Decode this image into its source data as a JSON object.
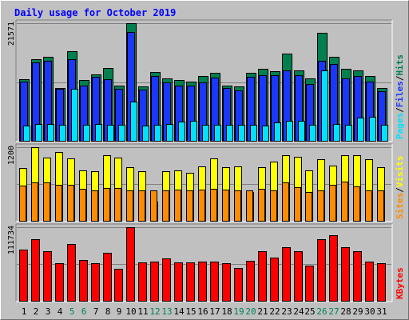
{
  "chart_data": {
    "type": "bar",
    "title": "Daily usage for October 2019",
    "categories": [
      "1",
      "2",
      "3",
      "4",
      "5",
      "6",
      "7",
      "8",
      "9",
      "10",
      "11",
      "12",
      "13",
      "14",
      "15",
      "16",
      "17",
      "18",
      "19",
      "20",
      "21",
      "22",
      "23",
      "24",
      "25",
      "26",
      "27",
      "28",
      "29",
      "30",
      "31"
    ],
    "weekend_days": [
      "5",
      "6",
      "12",
      "13",
      "19",
      "20",
      "26",
      "27"
    ],
    "panels": [
      {
        "id": "top",
        "max_label": "21571",
        "ymax": 21571,
        "legend": [
          "Pages",
          "/",
          "Files",
          "/",
          "Hits"
        ],
        "series": [
          {
            "name": "Hits",
            "color": "#007f4f",
            "values": [
              11357,
              15000,
              15370,
              9635,
              16389,
              11093,
              12241,
              13333,
              10093,
              21571,
              10019,
              12685,
              11463,
              11093,
              10926,
              11852,
              12407,
              10185,
              9926,
              12500,
              13241,
              12778,
              15926,
              12963,
              11481,
              19815,
              15463,
              13148,
              12870,
              11852,
              9722
            ]
          },
          {
            "name": "Files",
            "color": "#1a37ff",
            "values": [
              10926,
              14444,
              14630,
              9537,
              15000,
              10185,
              11667,
              11296,
              9537,
              20000,
              9352,
              11852,
              10741,
              10185,
              10185,
              10741,
              11574,
              9630,
              9259,
              11667,
              12037,
              12037,
              12963,
              12037,
              10370,
              14722,
              14074,
              11481,
              11852,
              10926,
              9167
            ]
          },
          {
            "name": "Pages",
            "color": "#00e1ff",
            "values": [
              2778,
              3056,
              3056,
              2963,
              9537,
              2963,
              3056,
              2870,
              2963,
              7222,
              2778,
              2963,
              3148,
              3519,
              3704,
              2870,
              2870,
              2870,
              2963,
              2870,
              2778,
              3333,
              3704,
              3704,
              2963,
              12870,
              3056,
              2963,
              4259,
              4352,
              2963
            ]
          }
        ]
      },
      {
        "id": "middle",
        "max_label": "1200",
        "ymax": 1200,
        "legend": [
          "Sites",
          "/",
          "Visits"
        ],
        "series": [
          {
            "name": "Visits",
            "color": "#ffff00",
            "values": [
              863,
              1200,
              1026,
              1118,
              1023,
              817,
              803,
              1072,
              1026,
              877,
              812,
              314,
              803,
              825,
              780,
              893,
              1023,
              868,
              893,
              468,
              868,
              962,
              1072,
              1046,
              825,
              1000,
              897,
              1074,
              1072,
              1000,
              879
            ]
          },
          {
            "name": "Sites",
            "color": "#ff8c00",
            "values": [
              577,
              627,
              628,
              588,
              586,
              517,
              502,
              532,
              532,
              502,
              497,
              502,
              502,
              510,
              500,
              510,
              517,
              509,
              502,
              502,
              520,
              502,
              627,
              552,
              472,
              497,
              582,
              633,
              566,
              500,
              502
            ]
          }
        ]
      },
      {
        "id": "bottom",
        "max_label": "111734",
        "ymax": 111734,
        "legend": [
          "KBytes"
        ],
        "series": [
          {
            "name": "KBytes",
            "color": "#ff0000",
            "values": [
              78000,
              94000,
              75000,
              57000,
              86000,
              62000,
              57000,
              73000,
              49000,
              111734,
              58000,
              60000,
              64000,
              58000,
              58000,
              59000,
              59000,
              57000,
              50000,
              61000,
              75000,
              65000,
              81000,
              75000,
              53000,
              94000,
              100000,
              81000,
              75000,
              59000,
              57000
            ]
          }
        ]
      }
    ]
  }
}
